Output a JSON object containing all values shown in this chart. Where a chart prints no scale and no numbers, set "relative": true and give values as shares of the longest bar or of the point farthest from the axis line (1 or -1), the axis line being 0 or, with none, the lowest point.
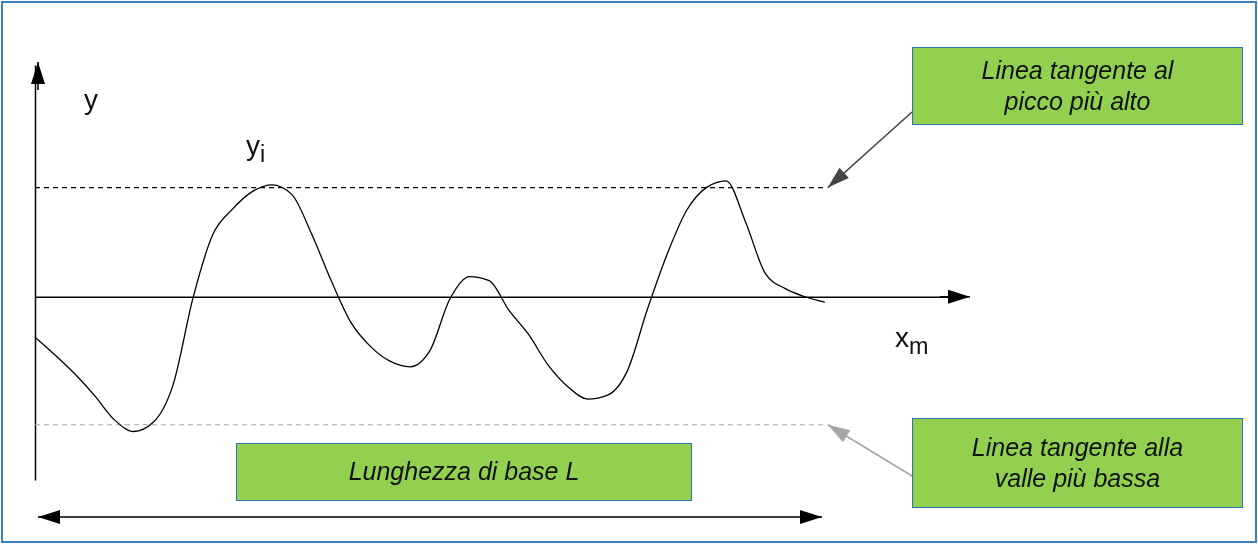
{
  "chart_data": {
    "type": "line",
    "relative": true,
    "xlabel": "x$_{m}$",
    "ylabel": "y",
    "categories": [
      null,
      null,
      null,
      null,
      null,
      null,
      null,
      null,
      null,
      null,
      null,
      null,
      null,
      null,
      null,
      null,
      null,
      null,
      null,
      null,
      null,
      null,
      null,
      null,
      null,
      null,
      null,
      null,
      null,
      null,
      null,
      null,
      null,
      null,
      null,
      null,
      null,
      null,
      null,
      null,
      null
    ],
    "series": [
      {
        "color": "#000000",
        "values": [
          -0.3,
          -0.43,
          -0.57,
          -0.73,
          -0.91,
          -1.0,
          -0.93,
          -0.65,
          -0.01,
          0.46,
          0.65,
          0.78,
          0.83,
          0.76,
          0.47,
          0.12,
          -0.19,
          -0.37,
          -0.48,
          -0.52,
          -0.4,
          -0.02,
          0.15,
          0.12,
          -0.1,
          -0.28,
          -0.51,
          -0.67,
          -0.76,
          -0.73,
          -0.55,
          -0.1,
          0.31,
          0.64,
          0.81,
          0.86,
          0.55,
          0.17,
          0.06,
          0.0,
          -0.04
        ]
      }
    ],
    "ref_lines": [
      {
        "axis": "y",
        "value": 0.81,
        "label": "Linea tangente al picco più alto",
        "color": "#000000",
        "line_style": "dashed"
      },
      {
        "axis": "y",
        "value": -0.95,
        "label": "Linea tangente alla valle più bassa",
        "color": "#a6a6a6",
        "line_style": "dashed"
      }
    ],
    "annotations": [
      "y$_{i}$",
      "Lunghezza di base L"
    ]
  }
}
